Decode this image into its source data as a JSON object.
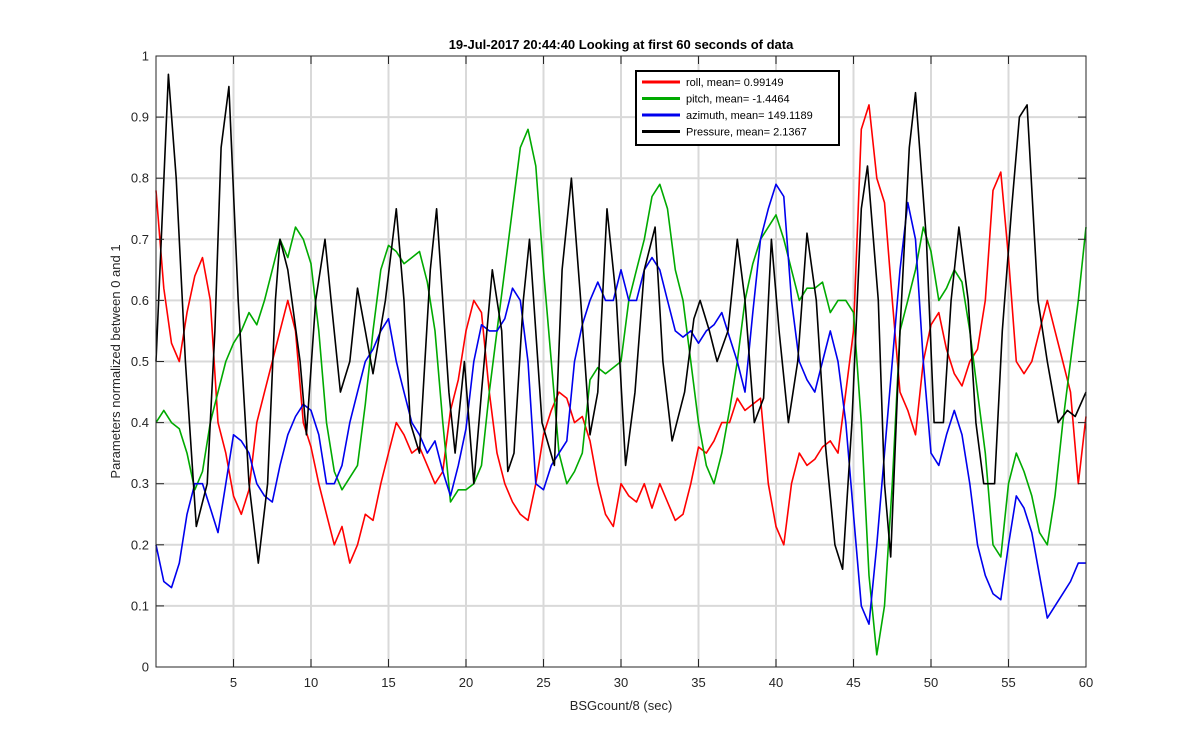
{
  "chart_data": {
    "type": "line",
    "title": "19-Jul-2017 20:44:40 Looking at first 60 seconds of data",
    "xlabel": "BSGcount/8 (sec)",
    "ylabel": "Parameters normalized between 0 and 1",
    "xlim": [
      0,
      60
    ],
    "ylim": [
      0,
      1
    ],
    "xticks": [
      5,
      10,
      15,
      20,
      25,
      30,
      35,
      40,
      45,
      50,
      55,
      60
    ],
    "yticks": [
      0,
      0.1,
      0.2,
      0.3,
      0.4,
      0.5,
      0.6,
      0.7,
      0.8,
      0.9,
      1
    ],
    "xtick_labels": [
      "5",
      "10",
      "15",
      "20",
      "25",
      "30",
      "35",
      "40",
      "45",
      "50",
      "55",
      "60"
    ],
    "ytick_labels": [
      "0",
      "0.1",
      "0.2",
      "0.3",
      "0.4",
      "0.5",
      "0.6",
      "0.7",
      "0.8",
      "0.9",
      "1"
    ],
    "grid": true,
    "legend_position": "top-right",
    "series": [
      {
        "name": "roll, mean= 0.99149",
        "color": "#ff0000",
        "x": [
          0,
          0.5,
          1,
          1.5,
          2,
          2.5,
          3,
          3.5,
          4,
          4.5,
          5,
          5.5,
          6,
          6.5,
          7,
          7.5,
          8,
          8.5,
          9,
          9.5,
          10,
          10.5,
          11,
          11.5,
          12,
          12.5,
          13,
          13.5,
          14,
          14.5,
          15,
          15.5,
          16,
          16.5,
          17,
          17.5,
          18,
          18.5,
          19,
          19.5,
          20,
          20.5,
          21,
          21.5,
          22,
          22.5,
          23,
          23.5,
          24,
          24.5,
          25,
          25.5,
          26,
          26.5,
          27,
          27.5,
          28,
          28.5,
          29,
          29.5,
          30,
          30.5,
          31,
          31.5,
          32,
          32.5,
          33,
          33.5,
          34,
          34.5,
          35,
          35.5,
          36,
          36.5,
          37,
          37.5,
          38,
          38.5,
          39,
          39.5,
          40,
          40.5,
          41,
          41.5,
          42,
          42.5,
          43,
          43.5,
          44,
          44.5,
          45,
          45.5,
          46,
          46.5,
          47,
          47.5,
          48,
          48.5,
          49,
          49.5,
          50,
          50.5,
          51,
          51.5,
          52,
          52.5,
          53,
          53.5,
          54,
          54.5,
          55,
          55.5,
          56,
          56.5,
          57,
          57.5,
          58,
          58.5,
          59,
          59.5,
          60
        ],
        "y": [
          0.78,
          0.62,
          0.53,
          0.5,
          0.58,
          0.64,
          0.67,
          0.6,
          0.4,
          0.35,
          0.28,
          0.25,
          0.29,
          0.4,
          0.45,
          0.5,
          0.55,
          0.6,
          0.55,
          0.4,
          0.36,
          0.3,
          0.25,
          0.2,
          0.23,
          0.17,
          0.2,
          0.25,
          0.24,
          0.3,
          0.35,
          0.4,
          0.38,
          0.35,
          0.36,
          0.33,
          0.3,
          0.32,
          0.42,
          0.47,
          0.55,
          0.6,
          0.58,
          0.45,
          0.35,
          0.3,
          0.27,
          0.25,
          0.24,
          0.3,
          0.38,
          0.42,
          0.45,
          0.44,
          0.4,
          0.41,
          0.37,
          0.3,
          0.25,
          0.23,
          0.3,
          0.28,
          0.27,
          0.3,
          0.26,
          0.3,
          0.27,
          0.24,
          0.25,
          0.3,
          0.36,
          0.35,
          0.37,
          0.4,
          0.4,
          0.44,
          0.42,
          0.43,
          0.44,
          0.3,
          0.23,
          0.2,
          0.3,
          0.35,
          0.33,
          0.34,
          0.36,
          0.37,
          0.35,
          0.45,
          0.55,
          0.88,
          0.92,
          0.8,
          0.76,
          0.6,
          0.45,
          0.42,
          0.38,
          0.5,
          0.56,
          0.58,
          0.52,
          0.48,
          0.46,
          0.5,
          0.52,
          0.6,
          0.78,
          0.81,
          0.67,
          0.5,
          0.48,
          0.5,
          0.55,
          0.6,
          0.55,
          0.5,
          0.45,
          0.3,
          0.41
        ]
      },
      {
        "name": "pitch, mean= -1.4464",
        "color": "#00aa00",
        "x": [
          0,
          0.5,
          1,
          1.5,
          2,
          2.5,
          3,
          3.5,
          4,
          4.5,
          5,
          5.5,
          6,
          6.5,
          7,
          7.5,
          8,
          8.5,
          9,
          9.5,
          10,
          10.5,
          11,
          11.5,
          12,
          12.5,
          13,
          13.5,
          14,
          14.5,
          15,
          15.5,
          16,
          16.5,
          17,
          17.5,
          18,
          18.5,
          19,
          19.5,
          20,
          20.5,
          21,
          21.5,
          22,
          22.5,
          23,
          23.5,
          24,
          24.5,
          25,
          25.5,
          26,
          26.5,
          27,
          27.5,
          28,
          28.5,
          29,
          29.5,
          30,
          30.5,
          31,
          31.5,
          32,
          32.5,
          33,
          33.5,
          34,
          34.5,
          35,
          35.5,
          36,
          36.5,
          37,
          37.5,
          38,
          38.5,
          39,
          39.5,
          40,
          40.5,
          41,
          41.5,
          42,
          42.5,
          43,
          43.5,
          44,
          44.5,
          45,
          45.5,
          46,
          46.5,
          47,
          47.5,
          48,
          48.5,
          49,
          49.5,
          50,
          50.5,
          51,
          51.5,
          52,
          52.5,
          53,
          53.5,
          54,
          54.5,
          55,
          55.5,
          56,
          56.5,
          57,
          57.5,
          58,
          58.5,
          59,
          59.5,
          60
        ],
        "y": [
          0.4,
          0.42,
          0.4,
          0.39,
          0.35,
          0.29,
          0.32,
          0.4,
          0.45,
          0.5,
          0.53,
          0.55,
          0.58,
          0.56,
          0.6,
          0.65,
          0.7,
          0.67,
          0.72,
          0.7,
          0.66,
          0.55,
          0.4,
          0.32,
          0.29,
          0.31,
          0.33,
          0.43,
          0.55,
          0.65,
          0.69,
          0.68,
          0.66,
          0.67,
          0.68,
          0.63,
          0.55,
          0.4,
          0.27,
          0.29,
          0.29,
          0.3,
          0.33,
          0.45,
          0.55,
          0.65,
          0.75,
          0.85,
          0.88,
          0.82,
          0.65,
          0.5,
          0.35,
          0.3,
          0.32,
          0.35,
          0.47,
          0.49,
          0.48,
          0.49,
          0.5,
          0.6,
          0.65,
          0.7,
          0.77,
          0.79,
          0.75,
          0.65,
          0.6,
          0.5,
          0.4,
          0.33,
          0.3,
          0.35,
          0.42,
          0.5,
          0.6,
          0.66,
          0.7,
          0.72,
          0.74,
          0.7,
          0.65,
          0.6,
          0.62,
          0.62,
          0.63,
          0.58,
          0.6,
          0.6,
          0.58,
          0.4,
          0.15,
          0.02,
          0.1,
          0.3,
          0.55,
          0.6,
          0.65,
          0.72,
          0.68,
          0.6,
          0.62,
          0.65,
          0.63,
          0.55,
          0.45,
          0.35,
          0.2,
          0.18,
          0.3,
          0.35,
          0.32,
          0.28,
          0.22,
          0.2,
          0.28,
          0.4,
          0.5,
          0.6,
          0.72
        ]
      },
      {
        "name": "azimuth, mean= 149.1189",
        "color": "#0000ee",
        "x": [
          0,
          0.5,
          1,
          1.5,
          2,
          2.5,
          3,
          3.5,
          4,
          4.5,
          5,
          5.5,
          6,
          6.5,
          7,
          7.5,
          8,
          8.5,
          9,
          9.5,
          10,
          10.5,
          11,
          11.5,
          12,
          12.5,
          13,
          13.5,
          14,
          14.5,
          15,
          15.5,
          16,
          16.5,
          17,
          17.5,
          18,
          18.5,
          19,
          19.5,
          20,
          20.5,
          21,
          21.5,
          22,
          22.5,
          23,
          23.5,
          24,
          24.5,
          25,
          25.5,
          26,
          26.5,
          27,
          27.5,
          28,
          28.5,
          29,
          29.5,
          30,
          30.5,
          31,
          31.5,
          32,
          32.5,
          33,
          33.5,
          34,
          34.5,
          35,
          35.5,
          36,
          36.5,
          37,
          37.5,
          38,
          38.5,
          39,
          39.5,
          40,
          40.5,
          41,
          41.5,
          42,
          42.5,
          43,
          43.5,
          44,
          44.5,
          45,
          45.5,
          46,
          46.5,
          47,
          47.5,
          48,
          48.5,
          49,
          49.5,
          50,
          50.5,
          51,
          51.5,
          52,
          52.5,
          53,
          53.5,
          54,
          54.5,
          55,
          55.5,
          56,
          56.5,
          57,
          57.5,
          58,
          58.5,
          59,
          59.5,
          60
        ],
        "y": [
          0.2,
          0.14,
          0.13,
          0.17,
          0.25,
          0.3,
          0.3,
          0.26,
          0.22,
          0.3,
          0.38,
          0.37,
          0.35,
          0.3,
          0.28,
          0.27,
          0.33,
          0.38,
          0.41,
          0.43,
          0.42,
          0.38,
          0.3,
          0.3,
          0.33,
          0.4,
          0.45,
          0.5,
          0.52,
          0.55,
          0.57,
          0.5,
          0.45,
          0.4,
          0.38,
          0.35,
          0.37,
          0.32,
          0.28,
          0.33,
          0.39,
          0.5,
          0.56,
          0.55,
          0.55,
          0.57,
          0.62,
          0.6,
          0.5,
          0.3,
          0.29,
          0.33,
          0.35,
          0.37,
          0.5,
          0.56,
          0.6,
          0.63,
          0.6,
          0.6,
          0.65,
          0.6,
          0.6,
          0.65,
          0.67,
          0.65,
          0.6,
          0.55,
          0.54,
          0.55,
          0.53,
          0.55,
          0.56,
          0.58,
          0.54,
          0.5,
          0.45,
          0.58,
          0.7,
          0.75,
          0.79,
          0.77,
          0.6,
          0.5,
          0.47,
          0.45,
          0.5,
          0.55,
          0.5,
          0.4,
          0.25,
          0.1,
          0.07,
          0.2,
          0.35,
          0.5,
          0.65,
          0.76,
          0.7,
          0.5,
          0.35,
          0.33,
          0.38,
          0.42,
          0.38,
          0.3,
          0.2,
          0.15,
          0.12,
          0.11,
          0.2,
          0.28,
          0.26,
          0.22,
          0.15,
          0.08,
          0.1,
          0.12,
          0.14,
          0.17,
          0.17
        ]
      },
      {
        "name": "Pressure, mean= 2.1367",
        "color": "#000000",
        "x": [
          0,
          0.8,
          1.3,
          1.9,
          2.6,
          3.3,
          3.8,
          4.2,
          4.7,
          5.3,
          6,
          6.6,
          7.2,
          7.7,
          8,
          8.5,
          9.3,
          9.7,
          10.3,
          10.9,
          11.3,
          11.9,
          12.5,
          13,
          13.5,
          14,
          14.8,
          15.5,
          16,
          16.4,
          17,
          17.7,
          18.1,
          18.9,
          19.3,
          19.9,
          20.5,
          21,
          21.7,
          22.3,
          22.7,
          23.1,
          23.7,
          24.1,
          24.9,
          25.7,
          26.2,
          26.8,
          27.4,
          28,
          28.5,
          29.1,
          29.7,
          30.3,
          30.9,
          31.5,
          32.2,
          32.7,
          33.3,
          34.1,
          34.7,
          35.1,
          35.7,
          36.2,
          36.9,
          37.5,
          38,
          38.6,
          39.2,
          39.7,
          40.2,
          40.8,
          41.4,
          42,
          42.6,
          43.2,
          43.8,
          44.3,
          44.9,
          45.5,
          45.9,
          46.6,
          47,
          47.4,
          48,
          48.6,
          49,
          49.7,
          50.2,
          50.8,
          51.3,
          51.8,
          52.4,
          52.9,
          53.4,
          54.1,
          54.6,
          55.2,
          55.7,
          56.2,
          56.9,
          57.5,
          58.2,
          58.8,
          59.3,
          60
        ],
        "y": [
          0.5,
          0.97,
          0.8,
          0.5,
          0.23,
          0.3,
          0.55,
          0.85,
          0.95,
          0.6,
          0.3,
          0.17,
          0.3,
          0.6,
          0.7,
          0.65,
          0.5,
          0.38,
          0.6,
          0.7,
          0.6,
          0.45,
          0.5,
          0.62,
          0.55,
          0.48,
          0.6,
          0.75,
          0.6,
          0.4,
          0.35,
          0.65,
          0.75,
          0.45,
          0.35,
          0.5,
          0.3,
          0.45,
          0.65,
          0.55,
          0.32,
          0.35,
          0.6,
          0.7,
          0.4,
          0.33,
          0.65,
          0.8,
          0.6,
          0.38,
          0.45,
          0.75,
          0.6,
          0.33,
          0.45,
          0.65,
          0.72,
          0.5,
          0.37,
          0.45,
          0.57,
          0.6,
          0.55,
          0.5,
          0.55,
          0.7,
          0.6,
          0.4,
          0.44,
          0.7,
          0.55,
          0.4,
          0.5,
          0.71,
          0.6,
          0.36,
          0.2,
          0.16,
          0.4,
          0.75,
          0.82,
          0.6,
          0.3,
          0.18,
          0.55,
          0.85,
          0.94,
          0.7,
          0.4,
          0.4,
          0.6,
          0.72,
          0.6,
          0.4,
          0.3,
          0.3,
          0.55,
          0.75,
          0.9,
          0.92,
          0.6,
          0.5,
          0.4,
          0.42,
          0.41,
          0.45
        ]
      }
    ]
  }
}
